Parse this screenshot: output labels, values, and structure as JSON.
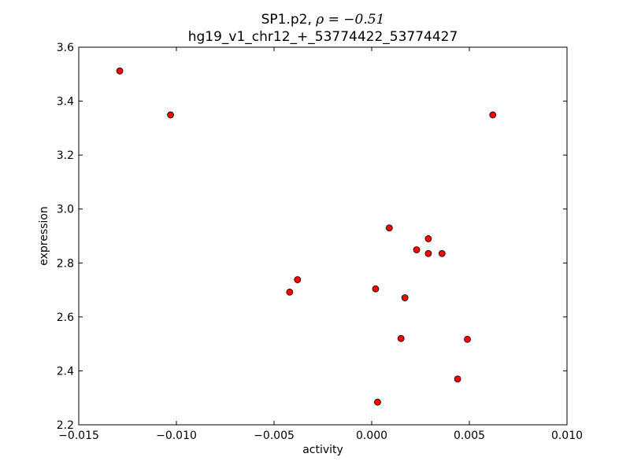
{
  "chart_data": {
    "type": "scatter",
    "title": {
      "line1_prefix": "SP1.p2, ",
      "line1_math": "ρ = −0.51",
      "line2": "hg19_v1_chr12_+_53774422_53774427"
    },
    "xlabel": "activity",
    "ylabel": "expression",
    "xlim": [
      -0.015,
      0.01
    ],
    "ylim": [
      2.2,
      3.6
    ],
    "xticks": [
      -0.015,
      -0.01,
      -0.005,
      0.0,
      0.005,
      0.01
    ],
    "xtick_labels": [
      "−0.015",
      "−0.010",
      "−0.005",
      "0.000",
      "0.005",
      "0.010"
    ],
    "yticks": [
      2.2,
      2.4,
      2.6,
      2.8,
      3.0,
      3.2,
      3.4,
      3.6
    ],
    "ytick_labels": [
      "2.2",
      "2.4",
      "2.6",
      "2.8",
      "3.0",
      "3.2",
      "3.4",
      "3.6"
    ],
    "grid": false,
    "marker_color": "#ff0000",
    "marker_edge_color": "#000000",
    "points": [
      {
        "x": -0.0129,
        "y": 3.512
      },
      {
        "x": -0.0103,
        "y": 3.349
      },
      {
        "x": 0.0062,
        "y": 3.349
      },
      {
        "x": 0.0009,
        "y": 2.93
      },
      {
        "x": 0.0029,
        "y": 2.89
      },
      {
        "x": 0.0023,
        "y": 2.849
      },
      {
        "x": 0.0029,
        "y": 2.835
      },
      {
        "x": 0.0036,
        "y": 2.835
      },
      {
        "x": -0.0038,
        "y": 2.738
      },
      {
        "x": -0.0042,
        "y": 2.692
      },
      {
        "x": 0.0002,
        "y": 2.704
      },
      {
        "x": 0.0017,
        "y": 2.671
      },
      {
        "x": 0.0015,
        "y": 2.52
      },
      {
        "x": 0.0049,
        "y": 2.517
      },
      {
        "x": 0.0044,
        "y": 2.37
      },
      {
        "x": 0.0003,
        "y": 2.284
      }
    ]
  }
}
